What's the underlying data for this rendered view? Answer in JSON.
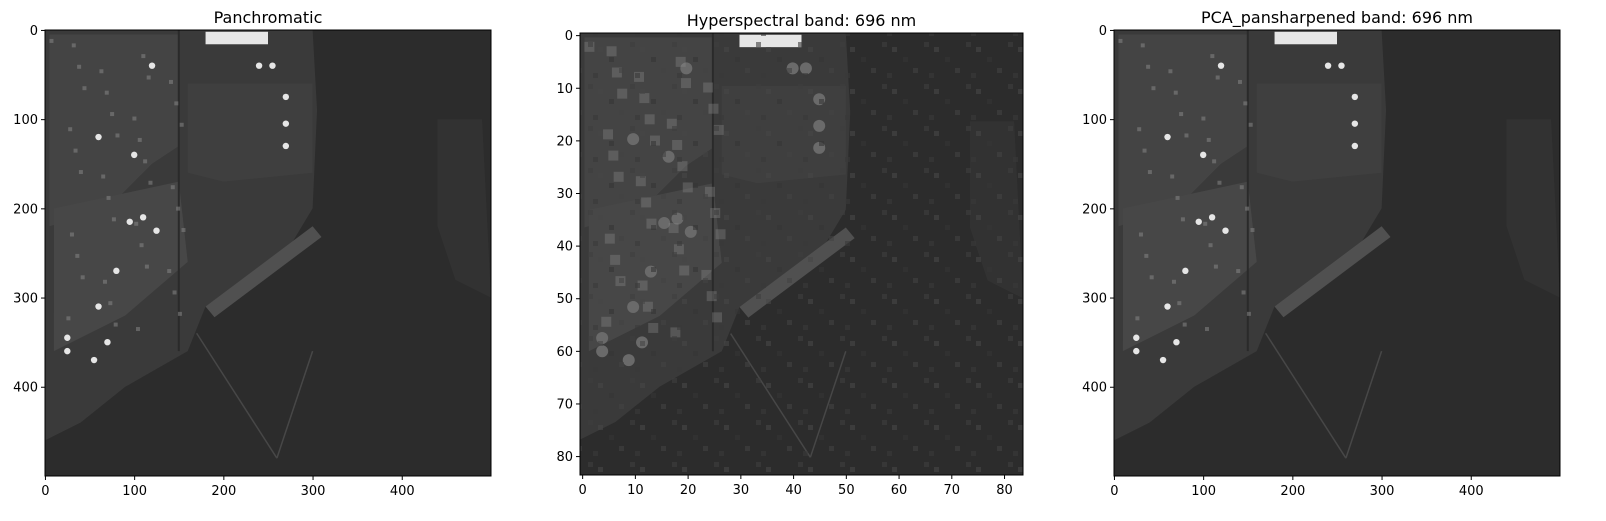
{
  "panels": [
    {
      "title": "Panchromatic",
      "xlim": [
        -0.5,
        499.5
      ],
      "ylim": [
        499.5,
        -0.5
      ],
      "xticks": [
        0,
        100,
        200,
        300,
        400
      ],
      "yticks": [
        0,
        100,
        200,
        300,
        400
      ],
      "image": {
        "content": "grayscale satellite image of an industrial port area (storage tanks, piers, buildings) on the left and dark water on the right",
        "resolution": "500 x 500 pixels"
      }
    },
    {
      "title": "Hyperspectral band: 696 nm",
      "xlim": [
        -0.5,
        83.5
      ],
      "ylim": [
        83.5,
        -0.5
      ],
      "xticks": [
        0,
        10,
        20,
        30,
        40,
        50,
        60,
        70,
        80
      ],
      "yticks": [
        0,
        10,
        20,
        30,
        40,
        50,
        60,
        70,
        80
      ],
      "image": {
        "content": "same scene at low spatial resolution; blocky pixels",
        "resolution": "84 x 84 pixels"
      }
    },
    {
      "title": "PCA_pansharpened band: 696 nm",
      "xlim": [
        -0.5,
        499.5
      ],
      "ylim": [
        499.5,
        -0.5
      ],
      "xticks": [
        0,
        100,
        200,
        300,
        400
      ],
      "yticks": [
        0,
        100,
        200,
        300,
        400
      ],
      "image": {
        "content": "pansharpened version of the hyperspectral band at panchromatic resolution",
        "resolution": "500 x 500 pixels"
      }
    }
  ],
  "colors": {
    "background": "#ffffff",
    "water": "#2c2c2c",
    "land": "#3a3a3a",
    "structure_light": "#8c8c8c",
    "structure_bright": "#e6e6e6",
    "axis": "#000000"
  }
}
